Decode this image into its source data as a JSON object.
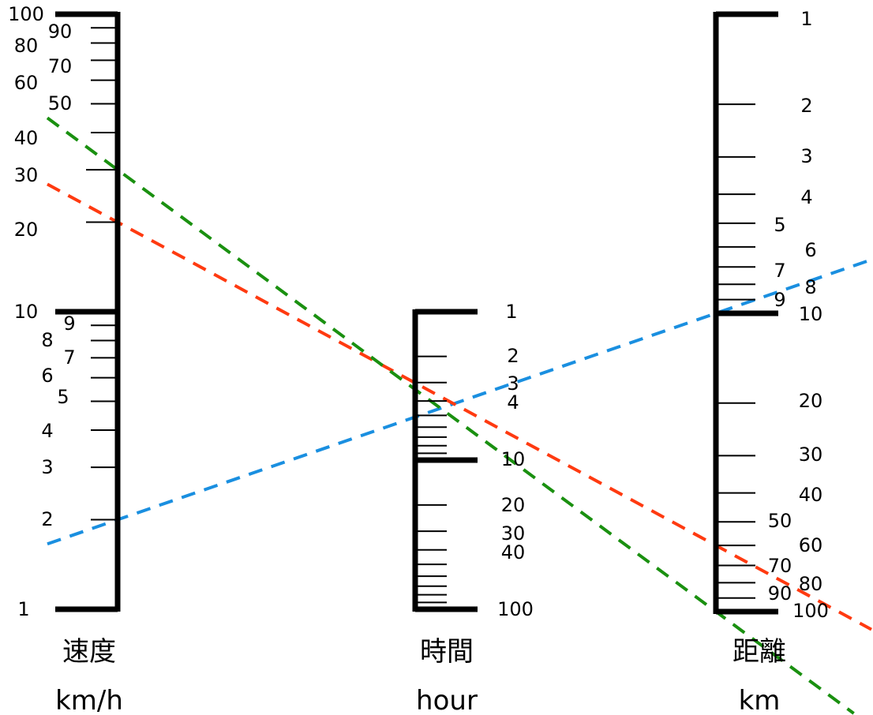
{
  "axes": [
    {
      "id": "speed",
      "title": "速度",
      "unit": "km/h",
      "ticks": [
        {
          "value": 1,
          "label": "1"
        },
        {
          "value": 2,
          "label": "2"
        },
        {
          "value": 3,
          "label": "3"
        },
        {
          "value": 4,
          "label": "4"
        },
        {
          "value": 5,
          "label": "5"
        },
        {
          "value": 6,
          "label": "6"
        },
        {
          "value": 7,
          "label": "7"
        },
        {
          "value": 8,
          "label": "8"
        },
        {
          "value": 9,
          "label": "9"
        },
        {
          "value": 10,
          "label": "10"
        },
        {
          "value": 20,
          "label": "20"
        },
        {
          "value": 30,
          "label": "30"
        },
        {
          "value": 40,
          "label": "40"
        },
        {
          "value": 50,
          "label": "50"
        },
        {
          "value": 60,
          "label": "60"
        },
        {
          "value": 70,
          "label": "70"
        },
        {
          "value": 80,
          "label": "80"
        },
        {
          "value": 90,
          "label": "90"
        },
        {
          "value": 100,
          "label": "100"
        }
      ]
    },
    {
      "id": "time",
      "title": "時間",
      "unit": "hour",
      "ticks": [
        {
          "value": 1,
          "label": "1"
        },
        {
          "value": 2,
          "label": "2"
        },
        {
          "value": 3,
          "label": "3"
        },
        {
          "value": 4,
          "label": "4"
        },
        {
          "value": 5,
          "label": ""
        },
        {
          "value": 6,
          "label": ""
        },
        {
          "value": 7,
          "label": ""
        },
        {
          "value": 8,
          "label": ""
        },
        {
          "value": 9,
          "label": ""
        },
        {
          "value": 10,
          "label": "10"
        },
        {
          "value": 20,
          "label": "20"
        },
        {
          "value": 30,
          "label": "30"
        },
        {
          "value": 40,
          "label": "40"
        },
        {
          "value": 50,
          "label": ""
        },
        {
          "value": 60,
          "label": ""
        },
        {
          "value": 70,
          "label": ""
        },
        {
          "value": 80,
          "label": ""
        },
        {
          "value": 90,
          "label": ""
        },
        {
          "value": 100,
          "label": "100"
        }
      ]
    },
    {
      "id": "distance",
      "title": "距離",
      "unit": "km",
      "ticks": [
        {
          "value": 1,
          "label": "1"
        },
        {
          "value": 2,
          "label": "2"
        },
        {
          "value": 3,
          "label": "3"
        },
        {
          "value": 4,
          "label": "4"
        },
        {
          "value": 5,
          "label": "5"
        },
        {
          "value": 6,
          "label": "6"
        },
        {
          "value": 7,
          "label": "7"
        },
        {
          "value": 8,
          "label": "8"
        },
        {
          "value": 9,
          "label": "9"
        },
        {
          "value": 10,
          "label": "10"
        },
        {
          "value": 20,
          "label": "20"
        },
        {
          "value": 30,
          "label": "30"
        },
        {
          "value": 40,
          "label": "40"
        },
        {
          "value": 50,
          "label": "50"
        },
        {
          "value": 60,
          "label": "60"
        },
        {
          "value": 70,
          "label": "70"
        },
        {
          "value": 80,
          "label": "80"
        },
        {
          "value": 90,
          "label": "90"
        },
        {
          "value": 100,
          "label": "100"
        }
      ]
    }
  ],
  "example_lines": [
    {
      "color": "#1a8fe0",
      "speed": 2,
      "time": 5,
      "distance": 10
    },
    {
      "color": "#ff3a10",
      "speed": 20,
      "time": 3,
      "distance": 60
    },
    {
      "color": "#1a9010",
      "speed": 30,
      "time": 3.3,
      "distance": 100
    }
  ],
  "colors": {
    "axis": "#000000",
    "background": "#ffffff"
  }
}
